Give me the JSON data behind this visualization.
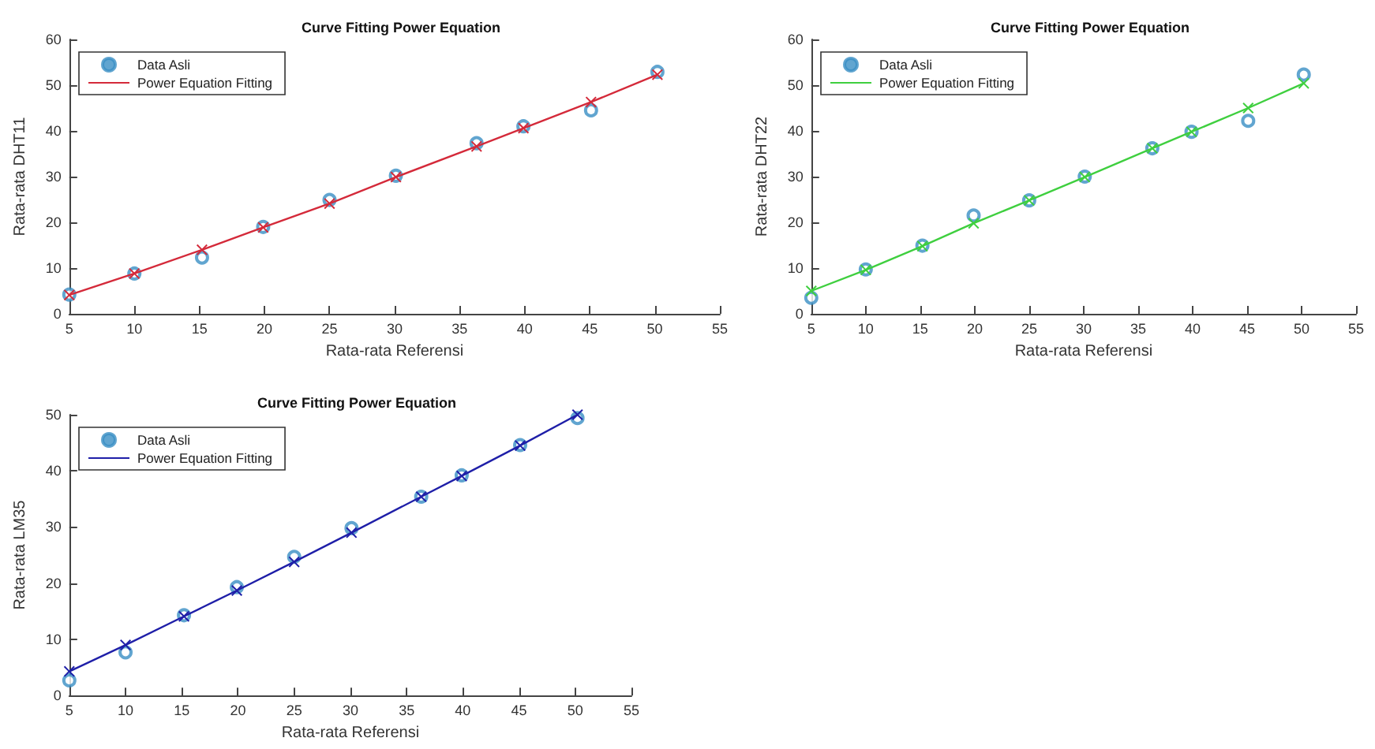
{
  "chart_data": [
    {
      "type": "scatter",
      "title": "Curve Fitting Power Equation",
      "xlabel": "Rata-rata Referensi",
      "ylabel": "Rata-rata DHT11",
      "x": [
        5,
        10,
        15.2,
        19.9,
        25,
        30.1,
        36.3,
        39.9,
        45.1,
        50.2
      ],
      "xlim": [
        5,
        55
      ],
      "xticks": [
        5,
        10,
        15,
        20,
        25,
        30,
        35,
        40,
        45,
        50,
        55
      ],
      "ylim": [
        0,
        60
      ],
      "yticks": [
        0,
        10,
        20,
        30,
        40,
        50,
        60
      ],
      "grid": false,
      "legend": "top left",
      "series": [
        {
          "name": "Data Asli",
          "marker": "circle",
          "color": "#3a8fc4",
          "values": [
            4.2,
            8.8,
            12.3,
            19,
            24.9,
            30.2,
            37.3,
            41,
            44.5,
            52.9
          ]
        },
        {
          "name": "Power Equation Fitting",
          "type": "line",
          "marker": "cross",
          "line_style": "solid",
          "color": "#d42a3a",
          "values": [
            4.1,
            8.8,
            14,
            18.9,
            24.1,
            29.9,
            36.6,
            40.6,
            46.3,
            52.3
          ]
        }
      ]
    },
    {
      "type": "scatter",
      "title": "Curve Fitting Power Equation",
      "xlabel": "Rata-rata Referensi",
      "ylabel": "Rata-rata DHT22",
      "x": [
        5,
        10,
        15.2,
        19.9,
        25,
        30.1,
        36.3,
        39.9,
        45.1,
        50.2
      ],
      "xlim": [
        5,
        55
      ],
      "xticks": [
        5,
        10,
        15,
        20,
        25,
        30,
        35,
        40,
        45,
        50,
        55
      ],
      "ylim": [
        0,
        60
      ],
      "yticks": [
        0,
        10,
        20,
        30,
        40,
        50,
        60
      ],
      "grid": false,
      "legend": "top left",
      "series": [
        {
          "name": "Data Asli",
          "marker": "circle",
          "color": "#3a8fc4",
          "values": [
            3.5,
            9.7,
            14.9,
            21.5,
            24.8,
            30,
            36.2,
            39.8,
            42.2,
            52.3
          ]
        },
        {
          "name": "Power Equation Fitting",
          "type": "line",
          "marker": "cross",
          "line_style": "solid",
          "color": "#3fcf3f",
          "values": [
            5,
            9.6,
            14.8,
            19.8,
            24.8,
            29.9,
            36.2,
            39.8,
            45,
            50.4
          ]
        }
      ]
    },
    {
      "type": "scatter",
      "title": "Curve Fitting Power Equation",
      "xlabel": "Rata-rata Referensi",
      "ylabel": "Rata-rata LM35",
      "x": [
        5,
        10,
        15.2,
        19.9,
        25,
        30.1,
        36.3,
        39.9,
        45.1,
        50.2
      ],
      "xlim": [
        5,
        55
      ],
      "xticks": [
        5,
        10,
        15,
        20,
        25,
        30,
        35,
        40,
        45,
        50,
        55
      ],
      "ylim": [
        0,
        50
      ],
      "yticks": [
        0,
        10,
        20,
        30,
        40,
        50
      ],
      "grid": false,
      "legend": "top left",
      "series": [
        {
          "name": "Data Asli",
          "marker": "circle",
          "color": "#3a8fc4",
          "values": [
            2.7,
            7.7,
            14.3,
            19.3,
            24.7,
            29.8,
            35.4,
            39.2,
            44.6,
            49.4
          ]
        },
        {
          "name": "Power Equation Fitting",
          "type": "line",
          "marker": "cross",
          "line_style": "solid",
          "color": "#1f1fa8",
          "values": [
            4.3,
            9,
            14.1,
            18.7,
            23.8,
            29,
            35.4,
            39.1,
            44.5,
            50
          ]
        }
      ]
    }
  ]
}
